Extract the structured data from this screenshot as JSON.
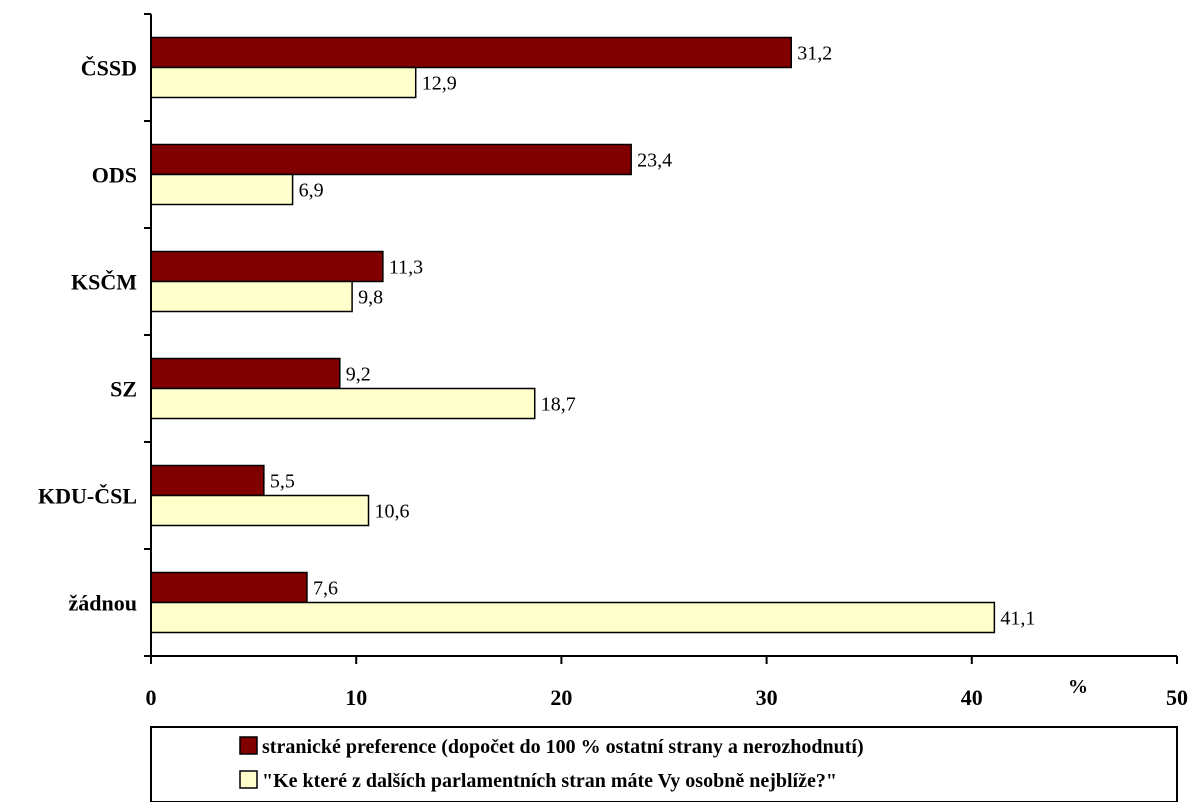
{
  "chart_data": {
    "type": "bar",
    "orientation": "horizontal",
    "categories": [
      "ČSSD",
      "ODS",
      "KSČM",
      "SZ",
      "KDU-ČSL",
      "žádnou"
    ],
    "series": [
      {
        "name": "stranické preference (dopočet do 100 % ostatní strany a nerozhodnutí)",
        "color": "#800000",
        "values": [
          31.2,
          23.4,
          11.3,
          9.2,
          5.5,
          7.6
        ],
        "labels": [
          "31,2",
          "23,4",
          "11,3",
          "9,2",
          "5,5",
          "7,6"
        ]
      },
      {
        "name": "\"Ke které z dalších parlamentních stran máte Vy osobně nejblíže?\"",
        "color": "#FFFFCC",
        "values": [
          12.9,
          6.9,
          9.8,
          18.7,
          10.6,
          41.1
        ],
        "labels": [
          "12,9",
          "6,9",
          "9,8",
          "18,7",
          "10,6",
          "41,1"
        ]
      }
    ],
    "xlim": [
      0,
      50
    ],
    "xticks": [
      "0",
      "10",
      "20",
      "30",
      "40",
      "50"
    ],
    "xunit": "%",
    "grid": false,
    "legend_position": "bottom"
  }
}
